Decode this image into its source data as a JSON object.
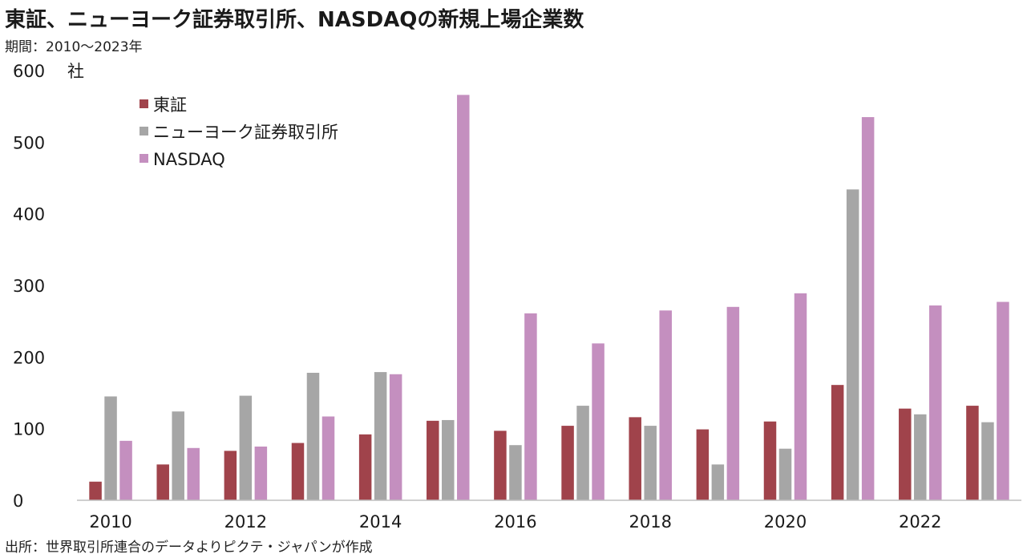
{
  "header": {
    "title": "東証、ニューヨーク証券取引所、NASDAQの新規上場企業数",
    "subtitle": "期間：2010～2023年"
  },
  "footer": {
    "source": "出所：世界取引所連合のデータよりピクテ・ジャパンが作成"
  },
  "chart_data": {
    "type": "bar",
    "title": "東証、ニューヨーク証券取引所、NASDAQの新規上場企業数",
    "subtitle": "期間：2010～2023年",
    "ylabel": "社",
    "ylim": [
      0,
      600
    ],
    "yticks": [
      "0",
      "100",
      "200",
      "300",
      "400",
      "500",
      "600"
    ],
    "legend_position": "top-left",
    "grid": false,
    "categories": [
      "2010",
      "2011",
      "2012",
      "2013",
      "2014",
      "2015",
      "2016",
      "2017",
      "2018",
      "2019",
      "2020",
      "2021",
      "2022",
      "2023"
    ],
    "xtick_labels": [
      "2010",
      "",
      "2012",
      "",
      "2014",
      "",
      "2016",
      "",
      "2018",
      "",
      "2020",
      "",
      "2022",
      ""
    ],
    "series": [
      {
        "name": "東証",
        "color": "#a0434b",
        "values": [
          26,
          50,
          69,
          80,
          92,
          111,
          97,
          104,
          116,
          99,
          110,
          161,
          128,
          132
        ]
      },
      {
        "name": "ニューヨーク証券取引所",
        "color": "#a6a6a6",
        "values": [
          145,
          124,
          146,
          178,
          179,
          112,
          77,
          132,
          104,
          50,
          72,
          434,
          120,
          109
        ]
      },
      {
        "name": "NASDAQ",
        "color": "#c48fbf",
        "values": [
          83,
          73,
          75,
          117,
          176,
          566,
          261,
          219,
          265,
          270,
          289,
          535,
          272,
          277
        ]
      }
    ]
  }
}
